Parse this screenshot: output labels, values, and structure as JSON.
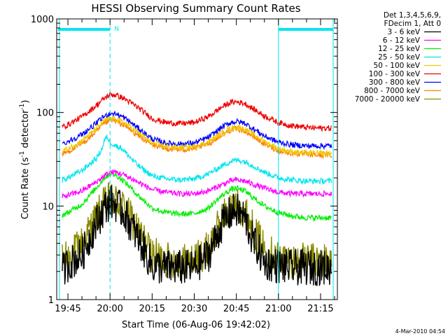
{
  "chart_data": {
    "type": "line",
    "title": "HESSI Observing Summary Count Rates",
    "xlabel": "Start Time (06-Aug-06 19:42:02)",
    "ylabel_parts": [
      "Count Rate (s",
      "-1",
      " detector",
      "-1",
      ")"
    ],
    "x_range_minutes_after_19_00": [
      41,
      141
    ],
    "x_tick_labels": [
      "19:45",
      "20:00",
      "20:15",
      "20:30",
      "20:45",
      "21:00",
      "21:15"
    ],
    "x_tick_minutes_after_19_00": [
      45,
      60,
      75,
      90,
      105,
      120,
      135
    ],
    "y_scale": "log",
    "ylim": [
      1,
      1000
    ],
    "y_tick_labels": [
      "1",
      "10",
      "100",
      "1000"
    ],
    "legend": {
      "header": [
        "Det 1,3,4,5,6,9,",
        "FDecim 1, Att 0"
      ],
      "placement": "outside-right"
    },
    "night_flag": {
      "label": "N",
      "intervals_minutes_after_19_00": [
        [
          41.5,
          60
        ],
        [
          120,
          139.5
        ]
      ],
      "color": "#00e5ee"
    },
    "vertical_markers_minutes_after_19_00": [
      60,
      120,
      139.5
    ],
    "data_gaps_minutes_after_19_00": [
      [
        41,
        42
      ],
      [
        139.5,
        141
      ]
    ],
    "series": [
      {
        "name": "3 - 6 keV",
        "color": "#000000",
        "x": [
          43,
          45,
          50,
          55,
          58,
          60,
          62,
          65,
          70,
          75,
          80,
          85,
          90,
          95,
          100,
          103,
          105,
          108,
          110,
          115,
          120,
          125,
          130,
          135,
          139
        ],
        "y": [
          2,
          2.4,
          3,
          6.5,
          9.5,
          11,
          10.5,
          8.5,
          4.5,
          2.3,
          2.2,
          2.2,
          2.2,
          3,
          6.5,
          8.5,
          9,
          7.5,
          5,
          2.5,
          2.3,
          2.2,
          2.2,
          2.2,
          2.2
        ]
      },
      {
        "name": "6 - 12 keV",
        "color": "#ff00ff",
        "x": [
          43,
          45,
          50,
          55,
          58,
          60,
          62,
          65,
          70,
          75,
          80,
          85,
          90,
          95,
          100,
          103,
          105,
          108,
          110,
          115,
          120,
          125,
          130,
          135,
          139
        ],
        "y": [
          12.5,
          13,
          14.5,
          18,
          21,
          23,
          23,
          21.5,
          18,
          15,
          14,
          13.5,
          13.5,
          14.5,
          17,
          18.5,
          19,
          18.5,
          17.5,
          15.5,
          14,
          13.5,
          13.5,
          13.5,
          13.5
        ]
      },
      {
        "name": "12 - 25 keV",
        "color": "#00ee00",
        "x": [
          43,
          45,
          50,
          55,
          58,
          60,
          62,
          65,
          70,
          75,
          80,
          85,
          90,
          95,
          100,
          103,
          105,
          108,
          110,
          115,
          120,
          125,
          130,
          135,
          139
        ],
        "y": [
          8,
          8.5,
          10.5,
          15.5,
          20,
          22,
          21.5,
          18.5,
          13,
          9.5,
          8.5,
          8.2,
          8.3,
          9.5,
          13,
          15,
          15.5,
          14.5,
          13,
          10,
          8.5,
          7.8,
          7.5,
          7.5,
          7.5
        ]
      },
      {
        "name": "25 - 50 keV",
        "color": "#00e5ee",
        "x": [
          43,
          45,
          50,
          55,
          57,
          58,
          59,
          60,
          62,
          64,
          66,
          70,
          75,
          80,
          85,
          90,
          95,
          100,
          103,
          105,
          108,
          110,
          115,
          120,
          125,
          130,
          135,
          139
        ],
        "y": [
          19,
          20,
          24,
          32,
          40,
          50,
          55,
          48,
          44,
          42,
          36,
          27,
          21,
          19.5,
          19,
          19.5,
          22,
          27,
          30,
          31,
          30,
          28,
          23,
          20,
          19,
          18.5,
          18.5,
          18.5
        ]
      },
      {
        "name": "50 - 100 keV",
        "color": "#eec900",
        "x": [
          43,
          45,
          50,
          55,
          58,
          60,
          62,
          65,
          70,
          75,
          80,
          85,
          90,
          95,
          100,
          103,
          105,
          108,
          110,
          115,
          120,
          125,
          130,
          135,
          139
        ],
        "y": [
          39,
          41,
          50,
          67,
          81,
          86,
          85,
          78,
          61,
          47,
          43,
          42,
          43,
          48,
          61,
          68,
          70,
          67,
          61,
          49,
          41,
          38,
          37,
          36.5,
          36.5
        ]
      },
      {
        "name": "100 - 300 keV",
        "color": "#ee0000",
        "x": [
          43,
          45,
          50,
          55,
          58,
          60,
          62,
          65,
          70,
          75,
          80,
          85,
          90,
          95,
          100,
          103,
          105,
          108,
          110,
          115,
          120,
          125,
          130,
          135,
          139
        ],
        "y": [
          70,
          74,
          90,
          118,
          142,
          155,
          154,
          141,
          113,
          86,
          78,
          76,
          78,
          90,
          115,
          128,
          130,
          125,
          114,
          92,
          78,
          72,
          69,
          68,
          68
        ]
      },
      {
        "name": "300 - 800 keV",
        "color": "#0000ff",
        "x": [
          43,
          45,
          50,
          55,
          58,
          60,
          62,
          65,
          70,
          75,
          80,
          85,
          90,
          95,
          100,
          103,
          105,
          108,
          110,
          115,
          120,
          125,
          130,
          135,
          139
        ],
        "y": [
          46,
          49,
          58,
          76,
          91,
          98,
          97,
          88,
          68,
          52,
          47,
          46,
          47,
          54,
          70,
          78,
          80,
          77,
          70,
          56,
          48,
          45,
          44,
          44,
          44
        ]
      },
      {
        "name": "800 - 7000 keV",
        "color": "#ff7f00",
        "x": [
          43,
          45,
          50,
          55,
          58,
          60,
          62,
          65,
          70,
          75,
          80,
          85,
          90,
          95,
          100,
          103,
          105,
          108,
          110,
          115,
          120,
          125,
          130,
          135,
          139
        ],
        "y": [
          36,
          38,
          46,
          62,
          76,
          82,
          81,
          73,
          57,
          45,
          41,
          40,
          41,
          46,
          58,
          65,
          67,
          64,
          58,
          46,
          39,
          36.5,
          35.5,
          35,
          35
        ]
      },
      {
        "name": "7000 - 20000 keV",
        "color": "#8b8b00",
        "x": [
          43,
          45,
          50,
          55,
          58,
          60,
          62,
          65,
          70,
          75,
          80,
          85,
          90,
          95,
          100,
          103,
          105,
          108,
          110,
          115,
          120,
          125,
          130,
          135,
          139
        ],
        "y": [
          2.6,
          2.8,
          4,
          7.5,
          10.5,
          12,
          11.5,
          9.5,
          5.5,
          3,
          2.7,
          2.6,
          2.6,
          3.5,
          7.5,
          9.5,
          10,
          9,
          6.5,
          3.5,
          2.8,
          2.6,
          2.6,
          2.6,
          2.6
        ]
      }
    ]
  },
  "footer_timestamp": "4-Mar-2010 04:54"
}
